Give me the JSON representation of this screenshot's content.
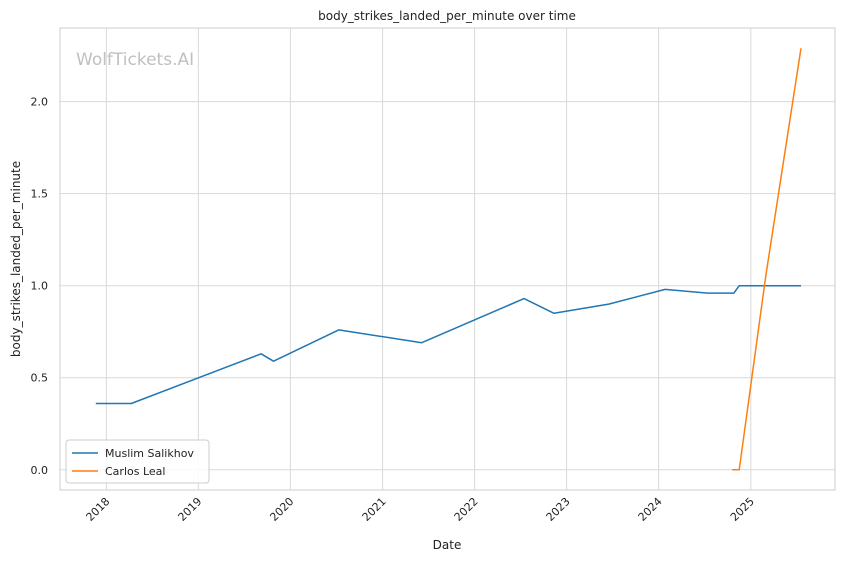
{
  "chart_data": {
    "type": "line",
    "title": "body_strikes_landed_per_minute over time",
    "xlabel": "Date",
    "ylabel": "body_strikes_landed_per_minute",
    "watermark": "WolfTickets.AI",
    "x_ticks": [
      "2018",
      "2019",
      "2020",
      "2021",
      "2022",
      "2023",
      "2024",
      "2025"
    ],
    "y_ticks": [
      "0.0",
      "0.5",
      "1.0",
      "1.5",
      "2.0"
    ],
    "xlim": [
      "2017-07-01",
      "2025-12-01"
    ],
    "ylim": [
      -0.11,
      2.4
    ],
    "grid": true,
    "legend_position": "lower-left",
    "series": [
      {
        "name": "Muslim Salikhov",
        "color": "#1f77b4",
        "points": [
          [
            "2017-11-20",
            0.36
          ],
          [
            "2018-04-10",
            0.36
          ],
          [
            "2019-09-07",
            0.63
          ],
          [
            "2019-10-26",
            0.59
          ],
          [
            "2020-07-11",
            0.76
          ],
          [
            "2021-06-05",
            0.69
          ],
          [
            "2022-07-16",
            0.93
          ],
          [
            "2022-11-12",
            0.85
          ],
          [
            "2023-06-17",
            0.9
          ],
          [
            "2024-01-27",
            0.98
          ],
          [
            "2024-07-13",
            0.96
          ],
          [
            "2024-10-26",
            0.96
          ],
          [
            "2024-11-16",
            1.0
          ],
          [
            "2025-07-19",
            1.0
          ]
        ]
      },
      {
        "name": "Carlos Leal",
        "color": "#ff7f0e",
        "points": [
          [
            "2024-10-19",
            0.0
          ],
          [
            "2024-11-16",
            0.0
          ],
          [
            "2025-03-01",
            1.05
          ],
          [
            "2025-07-19",
            2.29
          ]
        ]
      }
    ]
  }
}
